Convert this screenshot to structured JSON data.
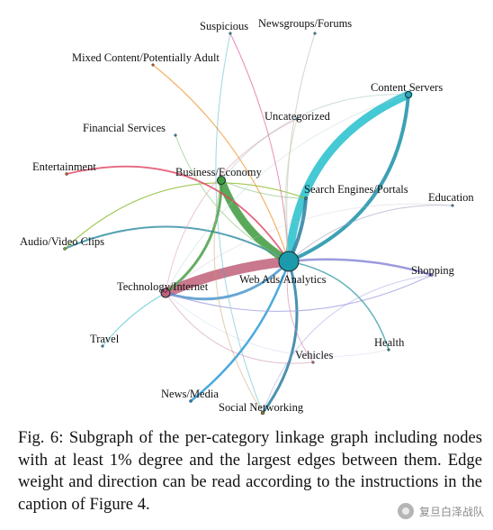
{
  "figure": {
    "nodes": [
      {
        "id": "suspicious",
        "label": "Suspicious",
        "color": "#3a8fa8"
      },
      {
        "id": "newsgroups",
        "label": "Newsgroups/Forums",
        "color": "#3a8fa8"
      },
      {
        "id": "mixed",
        "label": "Mixed Content/Potentially Adult",
        "color": "#d9531e"
      },
      {
        "id": "contentservers",
        "label": "Content Servers",
        "color": "#2aa8b8"
      },
      {
        "id": "uncategorized",
        "label": "Uncategorized",
        "color": "#3a8fa8"
      },
      {
        "id": "financial",
        "label": "Financial Services",
        "color": "#3a8fa8"
      },
      {
        "id": "entertainment",
        "label": "Entertainment",
        "color": "#d9531e"
      },
      {
        "id": "business",
        "label": "Business/Economy",
        "color": "#3d9a3d"
      },
      {
        "id": "searchengines",
        "label": "Search Engines/Portals",
        "color": "#2a7fa0"
      },
      {
        "id": "education",
        "label": "Education",
        "color": "#3a8fa8"
      },
      {
        "id": "audiovideo",
        "label": "Audio/Video Clips",
        "color": "#8a9a2a"
      },
      {
        "id": "shopping",
        "label": "Shopping",
        "color": "#6a6ad0"
      },
      {
        "id": "webads",
        "label": "Web Ads/Analytics",
        "color": "#1a9aaa"
      },
      {
        "id": "technology",
        "label": "Technology/Internet",
        "color": "#c0607a"
      },
      {
        "id": "travel",
        "label": "Travel",
        "color": "#3a8fa8"
      },
      {
        "id": "health",
        "label": "Health",
        "color": "#2a8a7a"
      },
      {
        "id": "vehicles",
        "label": "Vehicles",
        "color": "#c0607a"
      },
      {
        "id": "newsmedia",
        "label": "News/Media",
        "color": "#2a80c0"
      },
      {
        "id": "socialnetworking",
        "label": "Social Networking",
        "color": "#8a7a2a"
      }
    ]
  },
  "caption": {
    "text": "Fig. 6: Subgraph of the per-category linkage graph including nodes with at least 1% degree and the largest edges between them. Edge weight and direction can be read according to the instructions in the caption of Figure 4."
  },
  "watermark": {
    "text": "复旦白泽战队"
  }
}
